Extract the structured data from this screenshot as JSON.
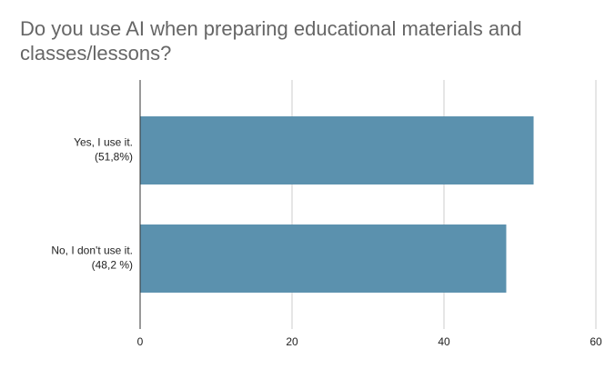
{
  "chart_data": {
    "type": "bar",
    "orientation": "horizontal",
    "title": "Do you use AI when preparing educational materials and classes/lessons?",
    "categories": [
      [
        "Yes, I use  it.",
        "(51,8%)"
      ],
      [
        "No, I don't use it.",
        "(48,2 %)"
      ]
    ],
    "values": [
      51.8,
      48.2
    ],
    "color": "#5b91ae",
    "xlim": [
      0,
      60
    ],
    "xticks": [
      0,
      20,
      40,
      60
    ],
    "grid": true
  }
}
